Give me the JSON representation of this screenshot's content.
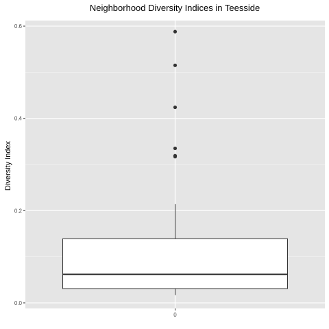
{
  "chart_data": {
    "type": "boxplot",
    "title": "Neighborhood Diversity Indices in Teesside",
    "xlabel": "",
    "ylabel": "Diversity Index",
    "ylim": [
      -0.012,
      0.612
    ],
    "y_ticks": [
      0.0,
      0.2,
      0.4,
      0.6
    ],
    "y_tick_labels": [
      "0.0",
      "0.2",
      "0.4",
      "0.6"
    ],
    "categories": [
      "0"
    ],
    "series": [
      {
        "category": "0",
        "whisker_low": 0.017,
        "q1": 0.031,
        "median": 0.062,
        "q3": 0.139,
        "whisker_high": 0.214,
        "outliers": [
          0.588,
          0.515,
          0.424,
          0.335,
          0.319,
          0.317
        ]
      }
    ],
    "grid": true,
    "legend": "none",
    "colors": {
      "panel_background": "#e5e5e5",
      "grid_major": "#ffffff",
      "box_fill": "#ffffff",
      "box_line": "#333333",
      "outlier": "#333333"
    }
  }
}
